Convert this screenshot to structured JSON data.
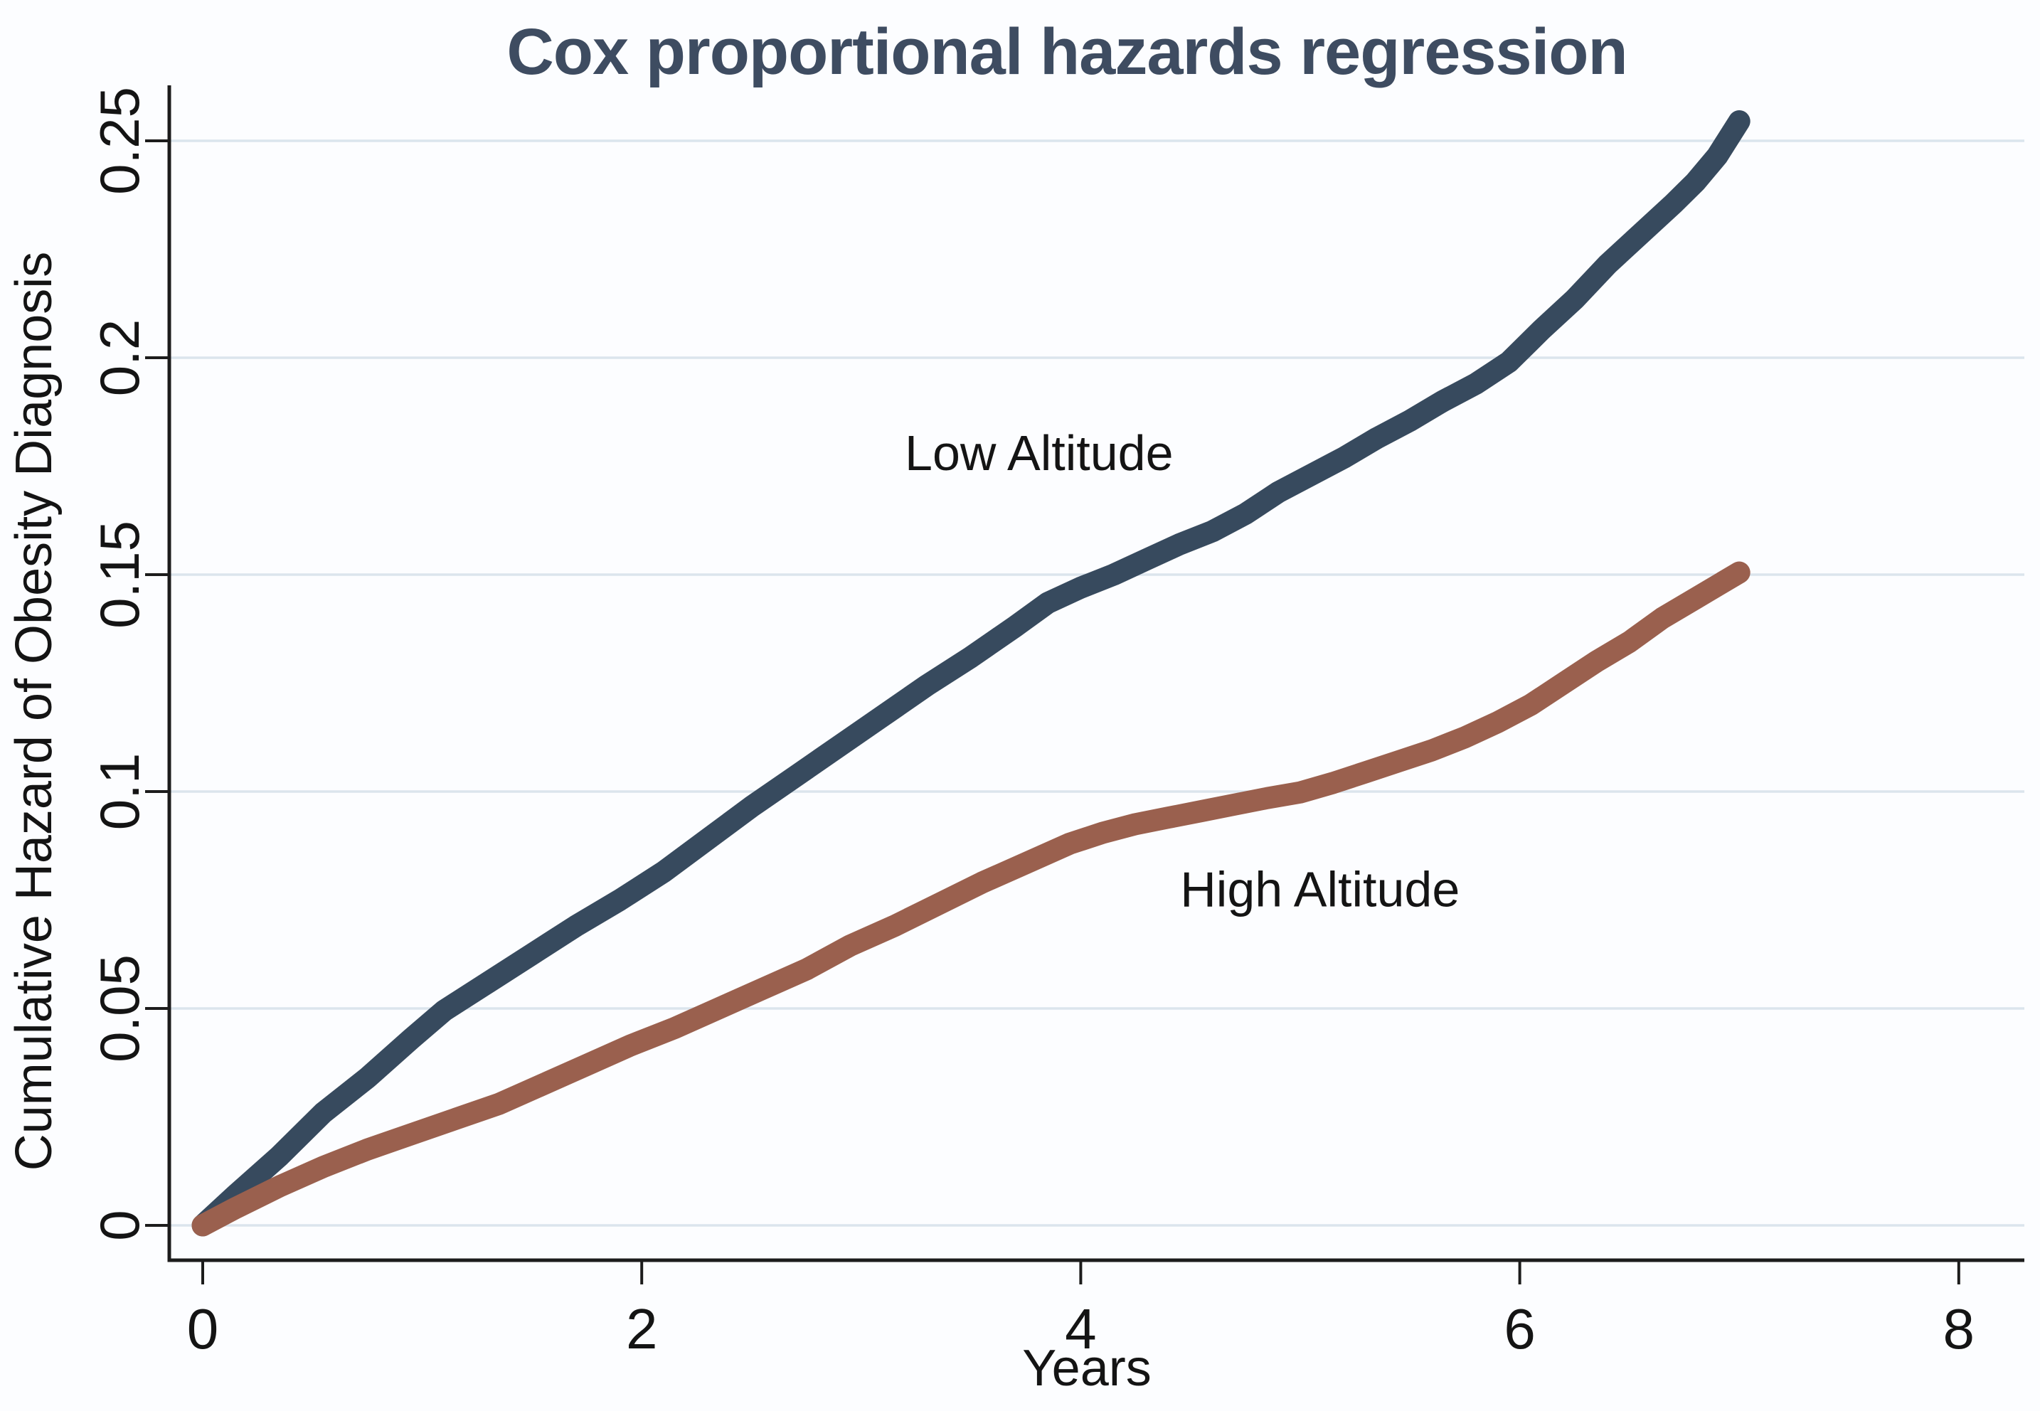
{
  "page": {
    "background": "#fcfdff"
  },
  "chart_data": {
    "type": "line",
    "title": "Cox proportional hazards regression",
    "xlabel": "Years",
    "ylabel": "Cumulative Hazard of Obesity Diagnosis",
    "xlim": [
      0,
      8.3
    ],
    "ylim": [
      0,
      0.265
    ],
    "x_ticks": [
      0,
      2,
      4,
      6,
      8
    ],
    "x_tick_labels": [
      "0",
      "2",
      "4",
      "6",
      "8"
    ],
    "y_ticks": [
      0,
      0.05,
      0.1,
      0.15,
      0.2,
      0.25
    ],
    "y_tick_labels": [
      "0",
      "0.05",
      "0.1",
      "0.15",
      "0.2",
      "0.25"
    ],
    "grid": "horizontal-gridlines-on",
    "legend": "inline-text-annotations",
    "colors": {
      "low_altitude_line": "#374a5e",
      "high_altitude_line": "#9a604e",
      "gridline": "#dbe5ed",
      "axis": "#1c1c1c",
      "title_text": "#3e4c61",
      "label_text": "#141414"
    },
    "series": [
      {
        "name": "Low Altitude",
        "color_key": "low_altitude_line",
        "points": [
          [
            0,
            0
          ],
          [
            0.15,
            0.007
          ],
          [
            0.35,
            0.016
          ],
          [
            0.55,
            0.026
          ],
          [
            0.75,
            0.034
          ],
          [
            0.95,
            0.043
          ],
          [
            1.1,
            0.0495
          ],
          [
            1.3,
            0.056
          ],
          [
            1.5,
            0.0625
          ],
          [
            1.7,
            0.069
          ],
          [
            1.9,
            0.075
          ],
          [
            2.1,
            0.0815
          ],
          [
            2.3,
            0.089
          ],
          [
            2.5,
            0.0965
          ],
          [
            2.7,
            0.1035
          ],
          [
            2.9,
            0.1105
          ],
          [
            3.1,
            0.1175
          ],
          [
            3.3,
            0.1245
          ],
          [
            3.5,
            0.131
          ],
          [
            3.7,
            0.138
          ],
          [
            3.85,
            0.1435
          ],
          [
            4.0,
            0.147
          ],
          [
            4.15,
            0.15
          ],
          [
            4.3,
            0.1535
          ],
          [
            4.45,
            0.157
          ],
          [
            4.6,
            0.16
          ],
          [
            4.75,
            0.164
          ],
          [
            4.9,
            0.169
          ],
          [
            5.05,
            0.173
          ],
          [
            5.2,
            0.177
          ],
          [
            5.35,
            0.1815
          ],
          [
            5.5,
            0.1855
          ],
          [
            5.65,
            0.19
          ],
          [
            5.8,
            0.194
          ],
          [
            5.95,
            0.199
          ],
          [
            6.1,
            0.2065
          ],
          [
            6.25,
            0.2135
          ],
          [
            6.4,
            0.2215
          ],
          [
            6.55,
            0.2285
          ],
          [
            6.7,
            0.2355
          ],
          [
            6.8,
            0.2405
          ],
          [
            6.9,
            0.2465
          ],
          [
            7.0,
            0.2545
          ]
        ]
      },
      {
        "name": "High Altitude",
        "color_key": "high_altitude_line",
        "points": [
          [
            0,
            0
          ],
          [
            0.15,
            0.004
          ],
          [
            0.35,
            0.009
          ],
          [
            0.55,
            0.0135
          ],
          [
            0.75,
            0.0175
          ],
          [
            0.95,
            0.021
          ],
          [
            1.15,
            0.0245
          ],
          [
            1.35,
            0.028
          ],
          [
            1.55,
            0.0325
          ],
          [
            1.75,
            0.037
          ],
          [
            1.95,
            0.0415
          ],
          [
            2.15,
            0.0455
          ],
          [
            2.35,
            0.05
          ],
          [
            2.55,
            0.0545
          ],
          [
            2.75,
            0.059
          ],
          [
            2.95,
            0.0645
          ],
          [
            3.15,
            0.069
          ],
          [
            3.35,
            0.074
          ],
          [
            3.55,
            0.079
          ],
          [
            3.75,
            0.0835
          ],
          [
            3.95,
            0.088
          ],
          [
            4.1,
            0.0905
          ],
          [
            4.25,
            0.0925
          ],
          [
            4.4,
            0.094
          ],
          [
            4.55,
            0.0955
          ],
          [
            4.7,
            0.097
          ],
          [
            4.85,
            0.0985
          ],
          [
            5.0,
            0.0998
          ],
          [
            5.15,
            0.102
          ],
          [
            5.3,
            0.1045
          ],
          [
            5.45,
            0.107
          ],
          [
            5.6,
            0.1095
          ],
          [
            5.75,
            0.1125
          ],
          [
            5.9,
            0.116
          ],
          [
            6.05,
            0.12
          ],
          [
            6.2,
            0.125
          ],
          [
            6.35,
            0.13
          ],
          [
            6.5,
            0.1345
          ],
          [
            6.65,
            0.14
          ],
          [
            6.8,
            0.1445
          ],
          [
            6.9,
            0.1475
          ],
          [
            7.0,
            0.1505
          ]
        ]
      }
    ],
    "annotations": [
      {
        "text": "Low Altitude",
        "x_year": 3.81,
        "y_hazard": 0.178
      },
      {
        "text": "High Altitude",
        "x_year": 5.09,
        "y_hazard": 0.0775
      }
    ]
  }
}
